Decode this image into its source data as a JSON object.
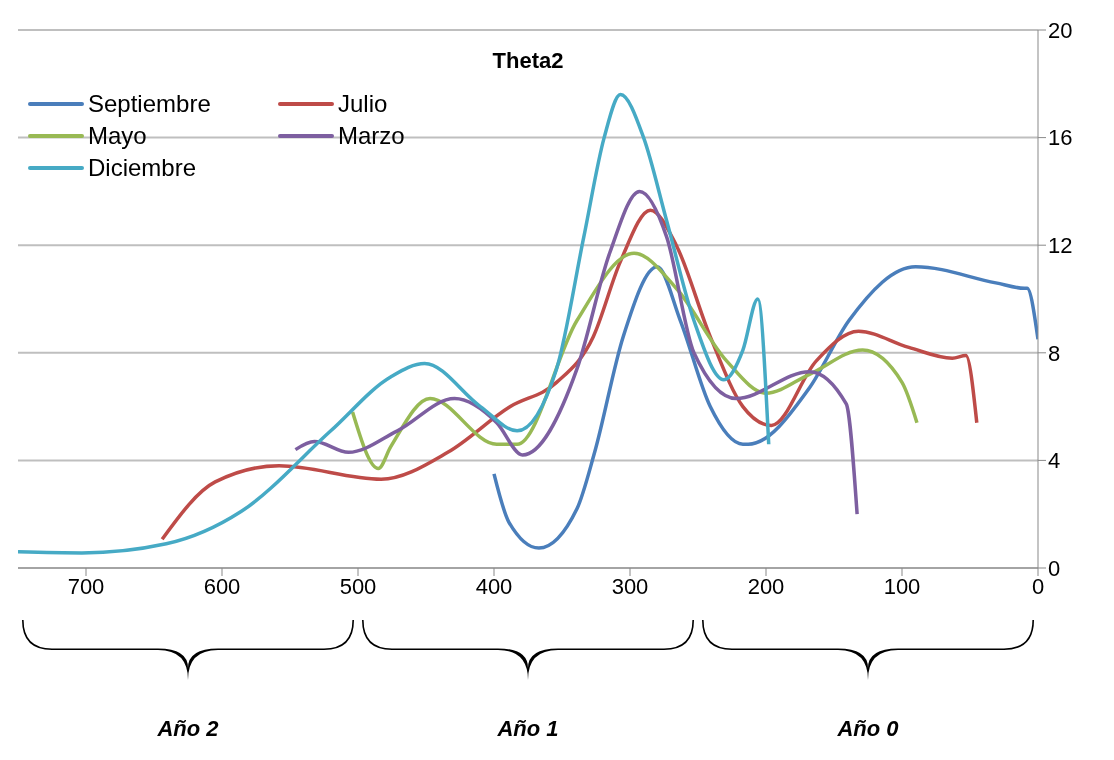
{
  "chart_data": {
    "type": "line",
    "title": "Theta2",
    "xlim": [
      750,
      0
    ],
    "xticks": [
      700,
      600,
      500,
      400,
      300,
      200,
      100,
      0
    ],
    "ylim": [
      0,
      20
    ],
    "yticks": [
      0,
      4,
      8,
      12,
      16,
      20
    ],
    "grid": "y",
    "legend": "top left",
    "marker": "none",
    "line_style": "solid",
    "annotations": [
      "Año 2",
      "Año 1",
      "Año 0"
    ],
    "series": [
      {
        "name": "Septiembre",
        "color": "#4a7ebb",
        "x": [
          400,
          389,
          367,
          339,
          326,
          305,
          280,
          263,
          241,
          217,
          213,
          168,
          139,
          90,
          31,
          10,
          8,
          0
        ],
        "values": [
          3.5,
          1.7,
          0.74,
          2.2,
          4.3,
          8.6,
          11.2,
          9.2,
          6.0,
          4.6,
          4.6,
          6.7,
          9.2,
          11.2,
          10.6,
          10.4,
          10.4,
          8.5
        ]
      },
      {
        "name": "Julio",
        "color": "#be4b48",
        "x": [
          644,
          605,
          558,
          483,
          434,
          388,
          354,
          327,
          307,
          285,
          266,
          241,
          217,
          196,
          163,
          132,
          95,
          63,
          53,
          45
        ],
        "values": [
          1.07,
          3.2,
          3.8,
          3.3,
          4.3,
          6.0,
          6.9,
          8.6,
          11.4,
          13.3,
          12.0,
          8.6,
          6.0,
          5.3,
          7.7,
          8.8,
          8.2,
          7.8,
          7.9,
          5.4
        ]
      },
      {
        "name": "Mayo",
        "color": "#98b954",
        "x": [
          504,
          485,
          476,
          447,
          398,
          383,
          339,
          297,
          266,
          229,
          200,
          168,
          129,
          100,
          89
        ],
        "values": [
          5.8,
          3.7,
          4.5,
          6.3,
          4.6,
          4.6,
          9.2,
          11.7,
          10.4,
          7.7,
          6.5,
          7.2,
          8.1,
          6.9,
          5.4
        ]
      },
      {
        "name": "Marzo",
        "color": "#7d5fa0",
        "x": [
          546,
          532,
          507,
          471,
          429,
          398,
          379,
          339,
          315,
          293,
          273,
          253,
          222,
          168,
          141,
          133
        ],
        "values": [
          4.4,
          4.7,
          4.3,
          5.1,
          6.3,
          5.4,
          4.2,
          7.4,
          11.7,
          14.0,
          12.3,
          8.0,
          6.3,
          7.3,
          6.1,
          2.0
        ]
      },
      {
        "name": "Diciembre",
        "color": "#46aac5",
        "x": [
          750,
          703,
          641,
          586,
          520,
          476,
          451,
          410,
          383,
          354,
          334,
          319,
          307,
          290,
          273,
          253,
          231,
          217,
          206,
          198
        ],
        "values": [
          0.6,
          0.56,
          0.9,
          2.1,
          5.1,
          7.1,
          7.6,
          6.0,
          5.1,
          7.4,
          12.3,
          16.0,
          17.6,
          16.0,
          12.9,
          9.2,
          7.0,
          8.1,
          10.0,
          4.6
        ]
      }
    ]
  }
}
